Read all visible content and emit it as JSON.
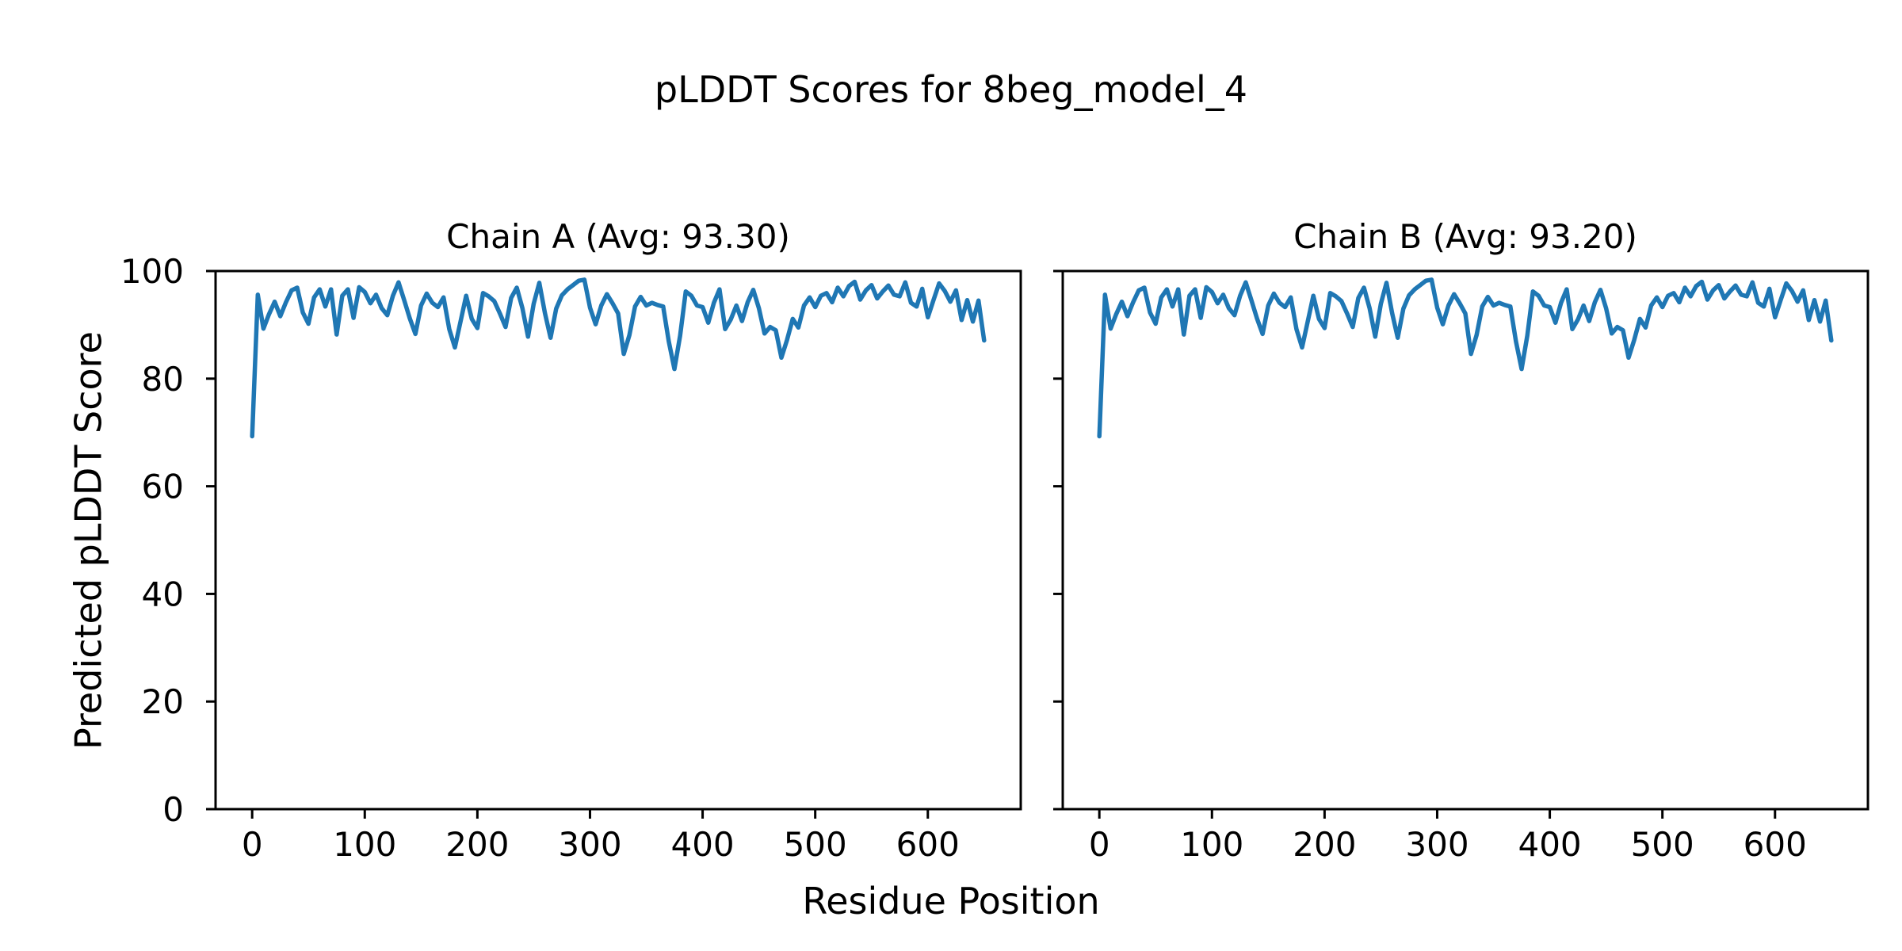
{
  "figure": {
    "title": "pLDDT Scores for 8beg_model_4",
    "xlabel": "Residue Position",
    "ylabel": "Predicted pLDDT Score",
    "background_color": "#ffffff",
    "axis_color": "#000000",
    "line_color": "#1f77b4"
  },
  "chart_data": [
    {
      "type": "line",
      "title": "Chain A (Avg: 93.30)",
      "average_plddt": 93.3,
      "legend": "none",
      "grid": false,
      "x_start": 0,
      "x_step": 5,
      "xlim": [
        -32.5,
        682.5
      ],
      "ylim": [
        0,
        100
      ],
      "xticks": [
        0,
        100,
        200,
        300,
        400,
        500,
        600
      ],
      "yticks": [
        0,
        20,
        40,
        60,
        80,
        100
      ],
      "show_ytick_labels": true,
      "values": [
        69.3,
        95.6,
        89.3,
        92.0,
        94.3,
        91.6,
        94.2,
        96.4,
        96.9,
        92.3,
        90.2,
        95.1,
        96.6,
        93.4,
        96.6,
        88.2,
        95.4,
        96.6,
        91.3,
        97.0,
        96.1,
        94.0,
        95.6,
        93.1,
        91.8,
        95.4,
        97.9,
        94.6,
        91.2,
        88.3,
        93.6,
        95.8,
        94.1,
        93.3,
        95.1,
        89.2,
        85.8,
        90.6,
        95.4,
        91.1,
        89.4,
        95.9,
        95.3,
        94.4,
        92.1,
        89.6,
        95.0,
        96.9,
        93.1,
        87.8,
        93.9,
        97.8,
        92.2,
        87.6,
        93.0,
        95.5,
        96.6,
        97.4,
        98.2,
        98.4,
        93.2,
        90.1,
        93.6,
        95.7,
        94.0,
        92.1,
        84.6,
        88.1,
        93.4,
        95.2,
        93.6,
        94.1,
        93.7,
        93.4,
        86.9,
        81.8,
        88.0,
        96.2,
        95.4,
        93.6,
        93.3,
        90.4,
        94.1,
        96.6,
        89.2,
        91.0,
        93.6,
        90.7,
        94.2,
        96.5,
        93.1,
        88.4,
        89.6,
        89.0,
        83.9,
        87.2,
        91.1,
        89.5,
        93.6,
        95.1,
        93.3,
        95.4,
        95.9,
        94.2,
        96.9,
        95.3,
        97.2,
        98.0,
        94.7,
        96.4,
        97.4,
        94.9,
        96.2,
        97.3,
        95.6,
        95.3,
        97.9,
        94.1,
        93.4,
        96.7,
        91.4,
        94.6,
        97.7,
        96.3,
        94.3,
        96.4,
        90.9,
        94.6,
        90.6,
        94.5,
        87.1
      ]
    },
    {
      "type": "line",
      "title": "Chain B (Avg: 93.20)",
      "average_plddt": 93.2,
      "legend": "none",
      "grid": false,
      "x_start": 0,
      "x_step": 5,
      "xlim": [
        -32.5,
        682.5
      ],
      "ylim": [
        0,
        100
      ],
      "xticks": [
        0,
        100,
        200,
        300,
        400,
        500,
        600
      ],
      "yticks": [
        0,
        20,
        40,
        60,
        80,
        100
      ],
      "show_ytick_labels": false,
      "values": [
        69.3,
        95.6,
        89.3,
        92.0,
        94.3,
        91.6,
        94.2,
        96.4,
        96.9,
        92.3,
        90.2,
        95.1,
        96.6,
        93.4,
        96.6,
        88.2,
        95.4,
        96.6,
        91.3,
        97.0,
        96.1,
        94.0,
        95.6,
        93.1,
        91.8,
        95.4,
        97.9,
        94.6,
        91.2,
        88.3,
        93.6,
        95.8,
        94.1,
        93.3,
        95.1,
        89.2,
        85.8,
        90.6,
        95.4,
        91.1,
        89.4,
        95.9,
        95.3,
        94.4,
        92.1,
        89.6,
        95.0,
        96.9,
        93.1,
        87.8,
        93.9,
        97.8,
        92.2,
        87.6,
        93.0,
        95.5,
        96.6,
        97.4,
        98.2,
        98.4,
        93.2,
        90.1,
        93.6,
        95.7,
        94.0,
        92.1,
        84.6,
        88.1,
        93.4,
        95.2,
        93.6,
        94.1,
        93.7,
        93.4,
        86.9,
        81.8,
        88.0,
        96.2,
        95.4,
        93.6,
        93.3,
        90.4,
        94.1,
        96.6,
        89.2,
        91.0,
        93.6,
        90.7,
        94.2,
        96.5,
        93.1,
        88.4,
        89.6,
        89.0,
        83.9,
        87.2,
        91.1,
        89.5,
        93.6,
        95.1,
        93.3,
        95.4,
        95.9,
        94.2,
        96.9,
        95.3,
        97.2,
        98.0,
        94.7,
        96.4,
        97.4,
        94.9,
        96.2,
        97.3,
        95.6,
        95.3,
        97.9,
        94.1,
        93.4,
        96.7,
        91.4,
        94.6,
        97.7,
        96.3,
        94.3,
        96.4,
        90.9,
        94.6,
        90.6,
        94.5,
        87.1
      ]
    }
  ]
}
